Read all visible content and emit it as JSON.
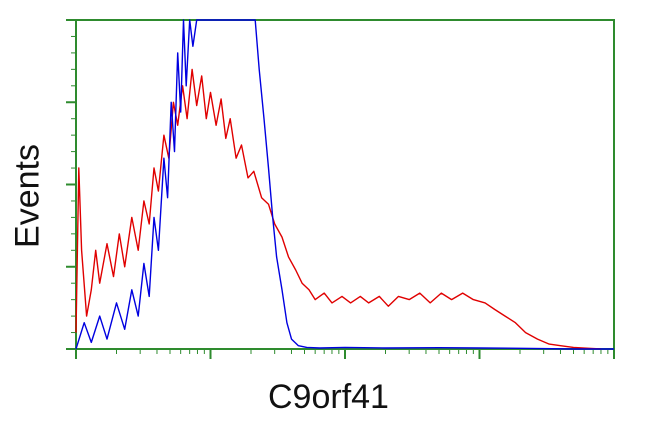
{
  "chart_data": {
    "type": "line",
    "title": "",
    "xlabel": "C9orf41",
    "ylabel": "Events",
    "x_scale": "log",
    "xlim": [
      1,
      10000
    ],
    "ylim": [
      0,
      100
    ],
    "grid": false,
    "legend": "none",
    "frame_color": "#2e8b2e",
    "series": [
      {
        "color": "#e00000",
        "points": [
          [
            1.0,
            5
          ],
          [
            1.05,
            55
          ],
          [
            1.1,
            30
          ],
          [
            1.2,
            10
          ],
          [
            1.3,
            18
          ],
          [
            1.4,
            30
          ],
          [
            1.5,
            20
          ],
          [
            1.7,
            32
          ],
          [
            1.9,
            22
          ],
          [
            2.1,
            35
          ],
          [
            2.3,
            25
          ],
          [
            2.6,
            40
          ],
          [
            2.9,
            30
          ],
          [
            3.2,
            45
          ],
          [
            3.5,
            38
          ],
          [
            3.8,
            55
          ],
          [
            4.1,
            48
          ],
          [
            4.5,
            65
          ],
          [
            4.9,
            58
          ],
          [
            5.3,
            75
          ],
          [
            5.7,
            68
          ],
          [
            6.2,
            80
          ],
          [
            6.7,
            70
          ],
          [
            7.3,
            85
          ],
          [
            7.9,
            74
          ],
          [
            8.6,
            83
          ],
          [
            9.3,
            70
          ],
          [
            10,
            78
          ],
          [
            11,
            68
          ],
          [
            12,
            76
          ],
          [
            13,
            64
          ],
          [
            14,
            70
          ],
          [
            15.5,
            58
          ],
          [
            17,
            62
          ],
          [
            19,
            52
          ],
          [
            21,
            54
          ],
          [
            24,
            46
          ],
          [
            27,
            44
          ],
          [
            30,
            38
          ],
          [
            34,
            34
          ],
          [
            38,
            28
          ],
          [
            43,
            24
          ],
          [
            48,
            20
          ],
          [
            54,
            18
          ],
          [
            60,
            15
          ],
          [
            70,
            17
          ],
          [
            80,
            14
          ],
          [
            95,
            16
          ],
          [
            110,
            14
          ],
          [
            130,
            16
          ],
          [
            150,
            14
          ],
          [
            180,
            16
          ],
          [
            210,
            13
          ],
          [
            250,
            16
          ],
          [
            300,
            15
          ],
          [
            360,
            17
          ],
          [
            430,
            14
          ],
          [
            520,
            17
          ],
          [
            620,
            15
          ],
          [
            750,
            17
          ],
          [
            900,
            15
          ],
          [
            1100,
            14
          ],
          [
            1300,
            12
          ],
          [
            1550,
            10
          ],
          [
            1850,
            8
          ],
          [
            2200,
            5
          ],
          [
            2700,
            3
          ],
          [
            3300,
            1.5
          ],
          [
            4000,
            1
          ],
          [
            5000,
            0.5
          ],
          [
            6500,
            0.2
          ],
          [
            8000,
            0
          ]
        ]
      },
      {
        "color": "#0000e0",
        "points": [
          [
            1.0,
            0
          ],
          [
            1.15,
            8
          ],
          [
            1.3,
            2
          ],
          [
            1.5,
            10
          ],
          [
            1.7,
            3
          ],
          [
            2.0,
            14
          ],
          [
            2.3,
            6
          ],
          [
            2.6,
            18
          ],
          [
            2.9,
            10
          ],
          [
            3.2,
            26
          ],
          [
            3.5,
            16
          ],
          [
            3.8,
            40
          ],
          [
            4.1,
            30
          ],
          [
            4.5,
            58
          ],
          [
            4.8,
            46
          ],
          [
            5.1,
            75
          ],
          [
            5.4,
            60
          ],
          [
            5.7,
            90
          ],
          [
            6.0,
            72
          ],
          [
            6.3,
            100
          ],
          [
            6.6,
            80
          ],
          [
            7.0,
            100
          ],
          [
            7.4,
            92
          ],
          [
            7.9,
            100
          ],
          [
            8.5,
            100
          ],
          [
            9.2,
            100
          ],
          [
            10,
            100
          ],
          [
            11,
            100
          ],
          [
            12,
            100
          ],
          [
            13,
            100
          ],
          [
            14.5,
            100
          ],
          [
            16,
            100
          ],
          [
            18,
            100
          ],
          [
            20,
            100
          ],
          [
            21.5,
            100
          ],
          [
            23,
            85
          ],
          [
            25,
            70
          ],
          [
            27,
            55
          ],
          [
            29,
            40
          ],
          [
            31,
            28
          ],
          [
            34,
            18
          ],
          [
            37,
            8
          ],
          [
            40,
            3
          ],
          [
            45,
            1
          ],
          [
            52,
            0.5
          ],
          [
            65,
            0.3
          ],
          [
            100,
            0.5
          ],
          [
            200,
            0.3
          ],
          [
            500,
            0.4
          ],
          [
            1000,
            0.3
          ],
          [
            2000,
            0.2
          ],
          [
            5000,
            0
          ],
          [
            10000,
            0
          ]
        ]
      }
    ]
  }
}
